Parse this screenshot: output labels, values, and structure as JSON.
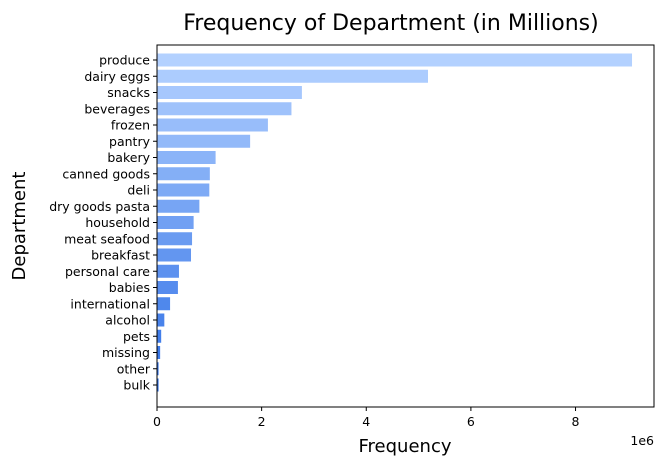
{
  "chart_data": {
    "type": "bar",
    "orientation": "horizontal",
    "title": "Frequency of Department (in Millions)",
    "xlabel": "Frequency",
    "ylabel": "Department",
    "x_scale_label": "1e6",
    "xlim": [
      0,
      9.5
    ],
    "x_ticks": [
      0,
      2,
      4,
      6,
      8
    ],
    "grid": false,
    "legend": "none",
    "colors": {
      "top": "#b3d1ff",
      "bottom": "#2e6fe6"
    },
    "categories": [
      "produce",
      "dairy eggs",
      "snacks",
      "beverages",
      "frozen",
      "pantry",
      "bakery",
      "canned goods",
      "deli",
      "dry goods pasta",
      "household",
      "meat seafood",
      "breakfast",
      "personal care",
      "babies",
      "international",
      "alcohol",
      "pets",
      "missing",
      "other",
      "bulk"
    ],
    "values": [
      9.08,
      5.18,
      2.77,
      2.57,
      2.12,
      1.78,
      1.12,
      1.01,
      1.0,
      0.81,
      0.7,
      0.67,
      0.65,
      0.42,
      0.4,
      0.25,
      0.14,
      0.08,
      0.06,
      0.03,
      0.03
    ]
  }
}
